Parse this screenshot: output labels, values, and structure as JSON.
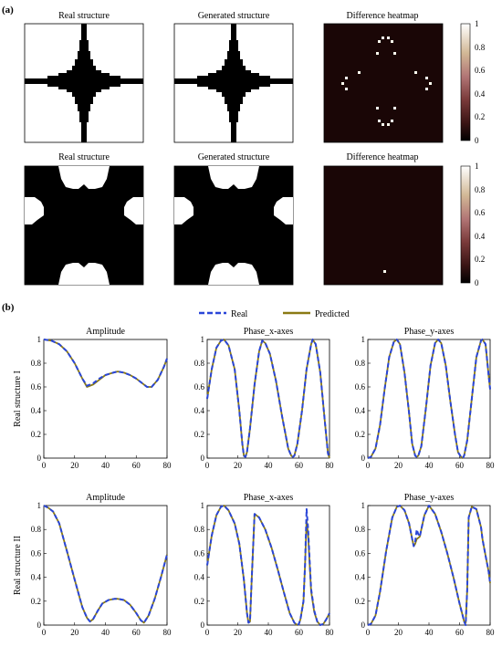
{
  "figure": {
    "panel_a_label": "(a)",
    "panel_b_label": "(b)",
    "colorbar_ticks": [
      "1",
      "0.8",
      "0.6",
      "0.4",
      "0.2",
      "0"
    ],
    "colors": {
      "structure": "#000000",
      "heatmap_bg": "#1a0606",
      "heatmap_hot": "#fffef0",
      "real": "#2a46d8",
      "predicted": "#8a7a14"
    },
    "rows_a": [
      {
        "titles": [
          "Real structure",
          "Generated structure",
          "Difference heatmap"
        ]
      },
      {
        "titles": [
          "Real structure",
          "Generated structure",
          "Difference heatmap"
        ]
      }
    ]
  },
  "legend": {
    "real": "Real",
    "predicted": "Predicted"
  },
  "chart_data": [
    {
      "type": "line",
      "title": "Amplitude",
      "ylabel": "Real structure I",
      "xlim": [
        0,
        80
      ],
      "ylim": [
        0,
        1
      ],
      "xticks": [
        "0",
        "20",
        "40",
        "60",
        "80"
      ],
      "yticks": [
        "0",
        "0.2",
        "0.4",
        "0.6",
        "0.8",
        "1"
      ],
      "series": [
        {
          "name": "Real",
          "x": [
            0,
            5,
            10,
            15,
            20,
            25,
            28,
            32,
            36,
            40,
            45,
            48,
            52,
            56,
            60,
            64,
            67,
            70,
            74,
            78,
            80
          ],
          "y": [
            1,
            0.99,
            0.96,
            0.9,
            0.8,
            0.67,
            0.61,
            0.63,
            0.67,
            0.7,
            0.72,
            0.73,
            0.72,
            0.7,
            0.67,
            0.63,
            0.6,
            0.6,
            0.66,
            0.77,
            0.84
          ]
        },
        {
          "name": "Predicted",
          "x": [
            0,
            5,
            10,
            15,
            20,
            25,
            28,
            32,
            36,
            40,
            45,
            48,
            52,
            56,
            60,
            64,
            67,
            70,
            74,
            78,
            80
          ],
          "y": [
            1,
            0.99,
            0.96,
            0.9,
            0.8,
            0.67,
            0.6,
            0.62,
            0.66,
            0.7,
            0.72,
            0.73,
            0.72,
            0.7,
            0.67,
            0.63,
            0.6,
            0.6,
            0.66,
            0.77,
            0.84
          ]
        }
      ]
    },
    {
      "type": "line",
      "title": "Phase_x-axes",
      "ylabel": "",
      "xlim": [
        0,
        80
      ],
      "ylim": [
        0,
        1
      ],
      "xticks": [
        "0",
        "20",
        "40",
        "60",
        "80"
      ],
      "yticks": [
        "0",
        "0.2",
        "0.4",
        "0.6",
        "0.8",
        "1"
      ],
      "series": [
        {
          "name": "Real",
          "x": [
            0,
            3,
            6,
            9,
            11,
            14,
            18,
            21,
            23,
            24,
            25,
            26,
            28,
            31,
            34,
            36,
            38,
            41,
            45,
            49,
            53,
            55,
            56,
            57,
            59,
            62,
            65,
            68,
            69,
            71,
            74,
            77,
            79,
            80
          ],
          "y": [
            0.5,
            0.75,
            0.93,
            0.99,
            1,
            0.95,
            0.75,
            0.4,
            0.12,
            0.02,
            0.01,
            0.05,
            0.25,
            0.62,
            0.9,
            0.99,
            0.97,
            0.88,
            0.65,
            0.35,
            0.08,
            0.02,
            0.01,
            0.02,
            0.12,
            0.4,
            0.75,
            0.96,
            1,
            0.96,
            0.72,
            0.3,
            0.04,
            0
          ]
        },
        {
          "name": "Predicted",
          "x": [
            0,
            3,
            6,
            9,
            11,
            14,
            18,
            21,
            23,
            24,
            25,
            26,
            28,
            31,
            34,
            36,
            38,
            41,
            45,
            49,
            53,
            55,
            56,
            57,
            59,
            62,
            65,
            68,
            69,
            71,
            74,
            77,
            79,
            80
          ],
          "y": [
            0.5,
            0.75,
            0.93,
            0.99,
            1,
            0.95,
            0.75,
            0.4,
            0.12,
            0.02,
            0.01,
            0.05,
            0.25,
            0.62,
            0.9,
            0.99,
            0.97,
            0.88,
            0.65,
            0.35,
            0.08,
            0.02,
            0.01,
            0.02,
            0.12,
            0.4,
            0.75,
            0.96,
            1,
            0.96,
            0.72,
            0.3,
            0.04,
            0
          ]
        }
      ]
    },
    {
      "type": "line",
      "title": "Phase_y-axes",
      "ylabel": "",
      "xlim": [
        0,
        80
      ],
      "ylim": [
        0,
        1
      ],
      "xticks": [
        "0",
        "20",
        "40",
        "60",
        "80"
      ],
      "yticks": [
        "0",
        "0.2",
        "0.4",
        "0.6",
        "0.8",
        "1"
      ],
      "series": [
        {
          "name": "Real",
          "x": [
            0,
            2,
            5,
            8,
            11,
            14,
            17,
            19,
            21,
            24,
            27,
            29,
            31,
            32,
            33,
            35,
            38,
            41,
            44,
            46,
            48,
            51,
            54,
            57,
            59,
            61,
            62,
            63,
            65,
            68,
            71,
            74,
            75,
            77,
            79,
            80
          ],
          "y": [
            0,
            0.01,
            0.08,
            0.28,
            0.58,
            0.85,
            0.98,
            1,
            0.96,
            0.72,
            0.38,
            0.12,
            0.02,
            0.01,
            0.02,
            0.1,
            0.42,
            0.78,
            0.97,
            1,
            0.97,
            0.78,
            0.48,
            0.2,
            0.05,
            0.01,
            0,
            0.02,
            0.15,
            0.5,
            0.85,
            0.99,
            1,
            0.96,
            0.7,
            0.58
          ]
        },
        {
          "name": "Predicted",
          "x": [
            0,
            2,
            5,
            8,
            11,
            14,
            17,
            19,
            21,
            24,
            27,
            29,
            31,
            32,
            33,
            35,
            38,
            41,
            44,
            46,
            48,
            51,
            54,
            57,
            59,
            61,
            62,
            63,
            65,
            68,
            71,
            74,
            75,
            77,
            79,
            80
          ],
          "y": [
            0,
            0.01,
            0.08,
            0.28,
            0.58,
            0.85,
            0.98,
            1,
            0.96,
            0.72,
            0.38,
            0.12,
            0.02,
            0.01,
            0.02,
            0.1,
            0.42,
            0.78,
            0.97,
            1,
            0.97,
            0.78,
            0.48,
            0.2,
            0.05,
            0.01,
            0,
            0.02,
            0.15,
            0.5,
            0.85,
            0.99,
            1,
            0.96,
            0.7,
            0.58
          ]
        }
      ]
    },
    {
      "type": "line",
      "title": "Amplitude",
      "ylabel": "Real structure II",
      "xlim": [
        0,
        80
      ],
      "ylim": [
        0,
        1
      ],
      "xticks": [
        "0",
        "20",
        "40",
        "60",
        "80"
      ],
      "yticks": [
        "0",
        "0.2",
        "0.4",
        "0.6",
        "0.8",
        "1"
      ],
      "series": [
        {
          "name": "Real",
          "x": [
            0,
            3,
            6,
            10,
            15,
            20,
            25,
            28,
            30,
            32,
            35,
            38,
            42,
            46,
            48,
            52,
            56,
            60,
            63,
            65,
            68,
            72,
            76,
            80
          ],
          "y": [
            1,
            0.98,
            0.95,
            0.85,
            0.62,
            0.38,
            0.15,
            0.06,
            0.03,
            0.05,
            0.12,
            0.18,
            0.21,
            0.22,
            0.22,
            0.21,
            0.17,
            0.1,
            0.04,
            0.02,
            0.08,
            0.22,
            0.4,
            0.59
          ]
        },
        {
          "name": "Predicted",
          "x": [
            0,
            3,
            6,
            10,
            15,
            20,
            25,
            28,
            30,
            32,
            35,
            38,
            42,
            46,
            48,
            52,
            56,
            60,
            63,
            65,
            68,
            72,
            76,
            80
          ],
          "y": [
            1,
            0.98,
            0.95,
            0.85,
            0.62,
            0.38,
            0.15,
            0.06,
            0.03,
            0.05,
            0.12,
            0.18,
            0.21,
            0.22,
            0.22,
            0.21,
            0.17,
            0.1,
            0.04,
            0.02,
            0.08,
            0.22,
            0.4,
            0.59
          ]
        }
      ]
    },
    {
      "type": "line",
      "title": "Phase_x-axes",
      "ylabel": "",
      "xlim": [
        0,
        80
      ],
      "ylim": [
        0,
        1
      ],
      "xticks": [
        "0",
        "20",
        "40",
        "60",
        "80"
      ],
      "yticks": [
        "0",
        "0.2",
        "0.4",
        "0.6",
        "0.8",
        "1"
      ],
      "series": [
        {
          "name": "Real",
          "x": [
            0,
            3,
            6,
            9,
            11,
            14,
            18,
            21,
            24,
            26,
            27,
            28,
            29,
            31,
            34,
            38,
            42,
            46,
            50,
            54,
            57,
            59,
            60,
            61,
            63,
            64,
            65,
            66,
            67,
            68,
            70,
            72,
            74,
            76,
            78,
            80
          ],
          "y": [
            0.5,
            0.75,
            0.92,
            0.99,
            1,
            0.96,
            0.85,
            0.68,
            0.38,
            0.1,
            0.02,
            0.03,
            0.35,
            0.93,
            0.9,
            0.8,
            0.65,
            0.47,
            0.28,
            0.1,
            0.02,
            0,
            0.01,
            0.05,
            0.2,
            0.5,
            0.97,
            0.8,
            0.55,
            0.3,
            0.12,
            0.03,
            0,
            0.01,
            0.05,
            0.1
          ]
        },
        {
          "name": "Predicted",
          "x": [
            0,
            3,
            6,
            9,
            11,
            14,
            18,
            21,
            24,
            26,
            27,
            28,
            29,
            31,
            34,
            38,
            42,
            46,
            50,
            54,
            57,
            59,
            60,
            61,
            63,
            64,
            65,
            66,
            67,
            68,
            70,
            72,
            74,
            76,
            78,
            80
          ],
          "y": [
            0.5,
            0.75,
            0.92,
            0.99,
            1,
            0.96,
            0.85,
            0.68,
            0.38,
            0.1,
            0.02,
            0.03,
            0.35,
            0.93,
            0.9,
            0.8,
            0.65,
            0.47,
            0.28,
            0.1,
            0.02,
            0,
            0.01,
            0.05,
            0.2,
            0.5,
            0.88,
            0.75,
            0.52,
            0.28,
            0.11,
            0.03,
            0,
            0.01,
            0.05,
            0.1
          ]
        }
      ]
    },
    {
      "type": "line",
      "title": "Phase_y-axes",
      "ylabel": "",
      "xlim": [
        0,
        80
      ],
      "ylim": [
        0,
        1
      ],
      "xticks": [
        "0",
        "20",
        "40",
        "60",
        "80"
      ],
      "yticks": [
        "0",
        "0.2",
        "0.4",
        "0.6",
        "0.8",
        "1"
      ],
      "series": [
        {
          "name": "Real",
          "x": [
            0,
            2,
            5,
            8,
            12,
            16,
            19,
            21,
            24,
            27,
            29,
            30,
            31,
            32,
            33,
            34,
            35,
            37,
            40,
            44,
            48,
            52,
            56,
            60,
            62,
            63,
            64,
            65,
            66,
            68,
            71,
            74,
            75,
            77,
            79,
            80
          ],
          "y": [
            0,
            0.01,
            0.08,
            0.28,
            0.62,
            0.9,
            0.99,
            1,
            0.96,
            0.85,
            0.72,
            0.66,
            0.7,
            0.8,
            0.76,
            0.74,
            0.8,
            0.92,
            1,
            0.93,
            0.78,
            0.6,
            0.4,
            0.18,
            0.08,
            0.03,
            0,
            0.3,
            0.9,
            0.99,
            0.97,
            0.82,
            0.72,
            0.58,
            0.45,
            0.35
          ]
        },
        {
          "name": "Predicted",
          "x": [
            0,
            2,
            5,
            8,
            12,
            16,
            19,
            21,
            24,
            27,
            29,
            30,
            31,
            32,
            33,
            34,
            35,
            37,
            40,
            44,
            48,
            52,
            56,
            60,
            62,
            63,
            64,
            65,
            66,
            68,
            71,
            74,
            75,
            77,
            79,
            80
          ],
          "y": [
            0,
            0.01,
            0.08,
            0.28,
            0.62,
            0.9,
            0.99,
            1,
            0.96,
            0.85,
            0.72,
            0.66,
            0.68,
            0.72,
            0.73,
            0.74,
            0.8,
            0.92,
            1,
            0.93,
            0.78,
            0.6,
            0.4,
            0.18,
            0.08,
            0.03,
            0.02,
            0.3,
            0.9,
            0.99,
            0.97,
            0.82,
            0.72,
            0.58,
            0.45,
            0.35
          ]
        }
      ]
    }
  ]
}
